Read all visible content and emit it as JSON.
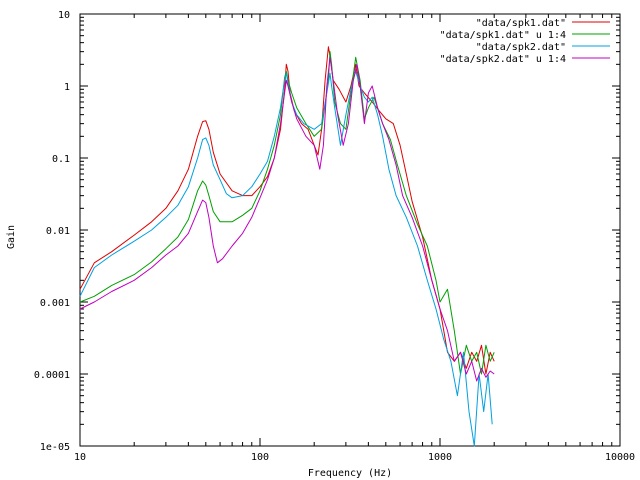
{
  "chart_data": {
    "type": "line",
    "title": "",
    "xlabel": "Frequency (Hz)",
    "ylabel": "Gain",
    "xscale": "log",
    "yscale": "log",
    "xlim": [
      10,
      10000
    ],
    "ylim": [
      1e-05,
      10
    ],
    "grid": false,
    "legend_position": "top-right",
    "x_ticks": [
      {
        "value": 10,
        "label": "10"
      },
      {
        "value": 100,
        "label": "100"
      },
      {
        "value": 1000,
        "label": "1000"
      },
      {
        "value": 10000,
        "label": "10000"
      }
    ],
    "y_ticks": [
      {
        "value": 10,
        "label": "10"
      },
      {
        "value": 1,
        "label": "1"
      },
      {
        "value": 0.1,
        "label": "0.1"
      },
      {
        "value": 0.01,
        "label": "0.01"
      },
      {
        "value": 0.001,
        "label": "0.001"
      },
      {
        "value": 0.0001,
        "label": "0.0001"
      },
      {
        "value": 1e-05,
        "label": "1e-05"
      }
    ],
    "series": [
      {
        "name": "\"data/spk1.dat\"",
        "color": "#e00000",
        "points": [
          [
            10,
            0.0015
          ],
          [
            12,
            0.0035
          ],
          [
            15,
            0.005
          ],
          [
            20,
            0.0085
          ],
          [
            25,
            0.013
          ],
          [
            30,
            0.02
          ],
          [
            35,
            0.035
          ],
          [
            40,
            0.07
          ],
          [
            45,
            0.2
          ],
          [
            48,
            0.32
          ],
          [
            50,
            0.33
          ],
          [
            52,
            0.25
          ],
          [
            55,
            0.12
          ],
          [
            60,
            0.06
          ],
          [
            70,
            0.035
          ],
          [
            80,
            0.03
          ],
          [
            90,
            0.03
          ],
          [
            100,
            0.04
          ],
          [
            110,
            0.055
          ],
          [
            120,
            0.1
          ],
          [
            130,
            0.25
          ],
          [
            137,
            0.9
          ],
          [
            140,
            2.0
          ],
          [
            143,
            1.6
          ],
          [
            147,
            0.8
          ],
          [
            155,
            0.45
          ],
          [
            170,
            0.3
          ],
          [
            185,
            0.25
          ],
          [
            200,
            0.15
          ],
          [
            210,
            0.11
          ],
          [
            220,
            0.25
          ],
          [
            230,
            1.2
          ],
          [
            240,
            3.5
          ],
          [
            245,
            2.6
          ],
          [
            255,
            1.2
          ],
          [
            275,
            0.9
          ],
          [
            300,
            0.6
          ],
          [
            320,
            1.0
          ],
          [
            340,
            2.0
          ],
          [
            355,
            1.0
          ],
          [
            380,
            0.8
          ],
          [
            420,
            0.6
          ],
          [
            460,
            0.45
          ],
          [
            500,
            0.35
          ],
          [
            550,
            0.3
          ],
          [
            600,
            0.15
          ],
          [
            650,
            0.06
          ],
          [
            700,
            0.025
          ],
          [
            800,
            0.008
          ],
          [
            900,
            0.002
          ],
          [
            1000,
            0.0008
          ],
          [
            1100,
            0.0002
          ],
          [
            1200,
            0.00015
          ],
          [
            1300,
            0.0002
          ],
          [
            1400,
            0.00012
          ],
          [
            1500,
            0.0002
          ],
          [
            1600,
            0.00015
          ],
          [
            1700,
            0.00025
          ],
          [
            1800,
            0.0001
          ],
          [
            1900,
            0.0002
          ],
          [
            2000,
            0.00015
          ]
        ]
      },
      {
        "name": "\"data/spk1.dat\" u 1:4",
        "color": "#00a000",
        "points": [
          [
            10,
            0.001
          ],
          [
            12,
            0.0012
          ],
          [
            15,
            0.0017
          ],
          [
            20,
            0.0024
          ],
          [
            25,
            0.0036
          ],
          [
            30,
            0.0055
          ],
          [
            35,
            0.008
          ],
          [
            40,
            0.014
          ],
          [
            45,
            0.035
          ],
          [
            48,
            0.048
          ],
          [
            50,
            0.042
          ],
          [
            52,
            0.03
          ],
          [
            55,
            0.018
          ],
          [
            60,
            0.013
          ],
          [
            70,
            0.013
          ],
          [
            80,
            0.016
          ],
          [
            90,
            0.02
          ],
          [
            100,
            0.035
          ],
          [
            110,
            0.07
          ],
          [
            120,
            0.15
          ],
          [
            130,
            0.4
          ],
          [
            137,
            1.3
          ],
          [
            140,
            1.6
          ],
          [
            143,
            1.2
          ],
          [
            150,
            0.8
          ],
          [
            160,
            0.5
          ],
          [
            180,
            0.3
          ],
          [
            200,
            0.2
          ],
          [
            220,
            0.25
          ],
          [
            240,
            1.2
          ],
          [
            245,
            3.0
          ],
          [
            250,
            2.0
          ],
          [
            260,
            0.6
          ],
          [
            280,
            0.3
          ],
          [
            300,
            0.25
          ],
          [
            320,
            0.8
          ],
          [
            340,
            2.5
          ],
          [
            360,
            1.2
          ],
          [
            380,
            0.35
          ],
          [
            400,
            0.5
          ],
          [
            430,
            0.7
          ],
          [
            480,
            0.3
          ],
          [
            530,
            0.18
          ],
          [
            580,
            0.08
          ],
          [
            650,
            0.03
          ],
          [
            750,
            0.012
          ],
          [
            850,
            0.006
          ],
          [
            950,
            0.002
          ],
          [
            1000,
            0.001
          ],
          [
            1100,
            0.0015
          ],
          [
            1200,
            0.0004
          ],
          [
            1300,
            0.0001
          ],
          [
            1400,
            0.00025
          ],
          [
            1500,
            0.00015
          ],
          [
            1600,
            0.0002
          ],
          [
            1700,
            0.0001
          ],
          [
            1800,
            0.00025
          ],
          [
            1900,
            0.00015
          ],
          [
            2000,
            0.0002
          ]
        ]
      },
      {
        "name": "\"data/spk2.dat\"",
        "color": "#00a0e0",
        "points": [
          [
            10,
            0.0012
          ],
          [
            12,
            0.003
          ],
          [
            15,
            0.0045
          ],
          [
            20,
            0.007
          ],
          [
            25,
            0.01
          ],
          [
            30,
            0.015
          ],
          [
            35,
            0.022
          ],
          [
            40,
            0.04
          ],
          [
            45,
            0.1
          ],
          [
            48,
            0.18
          ],
          [
            50,
            0.19
          ],
          [
            52,
            0.15
          ],
          [
            55,
            0.08
          ],
          [
            60,
            0.05
          ],
          [
            65,
            0.032
          ],
          [
            70,
            0.028
          ],
          [
            80,
            0.03
          ],
          [
            90,
            0.04
          ],
          [
            100,
            0.06
          ],
          [
            110,
            0.09
          ],
          [
            120,
            0.2
          ],
          [
            130,
            0.5
          ],
          [
            137,
            1.2
          ],
          [
            140,
            1.5
          ],
          [
            143,
            1.1
          ],
          [
            150,
            0.6
          ],
          [
            160,
            0.4
          ],
          [
            175,
            0.3
          ],
          [
            200,
            0.25
          ],
          [
            220,
            0.3
          ],
          [
            235,
            0.8
          ],
          [
            245,
            1.5
          ],
          [
            250,
            1.0
          ],
          [
            260,
            0.5
          ],
          [
            280,
            0.15
          ],
          [
            300,
            0.4
          ],
          [
            320,
            0.9
          ],
          [
            340,
            1.6
          ],
          [
            360,
            1.0
          ],
          [
            380,
            0.7
          ],
          [
            400,
            0.6
          ],
          [
            420,
            0.7
          ],
          [
            450,
            0.4
          ],
          [
            480,
            0.2
          ],
          [
            520,
            0.07
          ],
          [
            570,
            0.03
          ],
          [
            650,
            0.015
          ],
          [
            750,
            0.006
          ],
          [
            850,
            0.002
          ],
          [
            950,
            0.0008
          ],
          [
            1050,
            0.0003
          ],
          [
            1150,
            0.00015
          ],
          [
            1250,
            5e-05
          ],
          [
            1350,
            0.0002
          ],
          [
            1450,
            3e-05
          ],
          [
            1550,
            1e-05
          ],
          [
            1650,
            0.0001
          ],
          [
            1750,
            3e-05
          ],
          [
            1850,
            0.0001
          ],
          [
            1950,
            2e-05
          ]
        ]
      },
      {
        "name": "\"data/spk2.dat\" u 1:4",
        "color": "#c000c0",
        "points": [
          [
            10,
            0.0008
          ],
          [
            12,
            0.001
          ],
          [
            15,
            0.0014
          ],
          [
            20,
            0.002
          ],
          [
            25,
            0.003
          ],
          [
            30,
            0.0045
          ],
          [
            35,
            0.006
          ],
          [
            40,
            0.009
          ],
          [
            45,
            0.018
          ],
          [
            48,
            0.026
          ],
          [
            50,
            0.024
          ],
          [
            52,
            0.015
          ],
          [
            55,
            0.006
          ],
          [
            58,
            0.0035
          ],
          [
            62,
            0.004
          ],
          [
            70,
            0.006
          ],
          [
            80,
            0.009
          ],
          [
            90,
            0.015
          ],
          [
            100,
            0.028
          ],
          [
            110,
            0.05
          ],
          [
            120,
            0.1
          ],
          [
            130,
            0.3
          ],
          [
            137,
            0.8
          ],
          [
            140,
            1.2
          ],
          [
            143,
            1.0
          ],
          [
            150,
            0.6
          ],
          [
            160,
            0.35
          ],
          [
            180,
            0.2
          ],
          [
            200,
            0.15
          ],
          [
            215,
            0.07
          ],
          [
            225,
            0.15
          ],
          [
            235,
            1.0
          ],
          [
            245,
            2.5
          ],
          [
            255,
            1.2
          ],
          [
            270,
            0.4
          ],
          [
            290,
            0.15
          ],
          [
            310,
            0.3
          ],
          [
            330,
            1.2
          ],
          [
            345,
            2.0
          ],
          [
            360,
            1.0
          ],
          [
            380,
            0.3
          ],
          [
            400,
            0.8
          ],
          [
            420,
            1.0
          ],
          [
            450,
            0.5
          ],
          [
            480,
            0.3
          ],
          [
            520,
            0.18
          ],
          [
            570,
            0.08
          ],
          [
            620,
            0.03
          ],
          [
            700,
            0.015
          ],
          [
            800,
            0.006
          ],
          [
            900,
            0.002
          ],
          [
            1000,
            0.0008
          ],
          [
            1100,
            0.0004
          ],
          [
            1200,
            0.00015
          ],
          [
            1300,
            0.0002
          ],
          [
            1400,
            0.0001
          ],
          [
            1500,
            0.00015
          ],
          [
            1600,
            8e-05
          ],
          [
            1700,
            0.00012
          ],
          [
            1800,
            9e-05
          ],
          [
            1900,
            0.00011
          ],
          [
            2000,
            0.0001
          ]
        ]
      }
    ]
  }
}
